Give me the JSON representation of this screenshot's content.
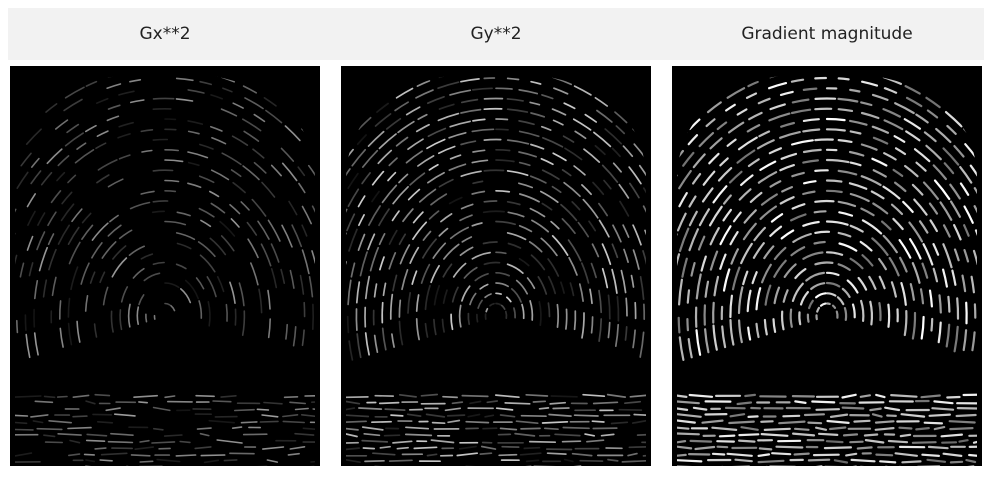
{
  "panels": [
    {
      "title": "Gx**2"
    },
    {
      "title": "Gy**2"
    },
    {
      "title": "Gradient magnitude"
    }
  ],
  "colors": {
    "header_bg": "#f2f2f2",
    "panel_bg": "#000000",
    "ridge": "#ffffff"
  }
}
